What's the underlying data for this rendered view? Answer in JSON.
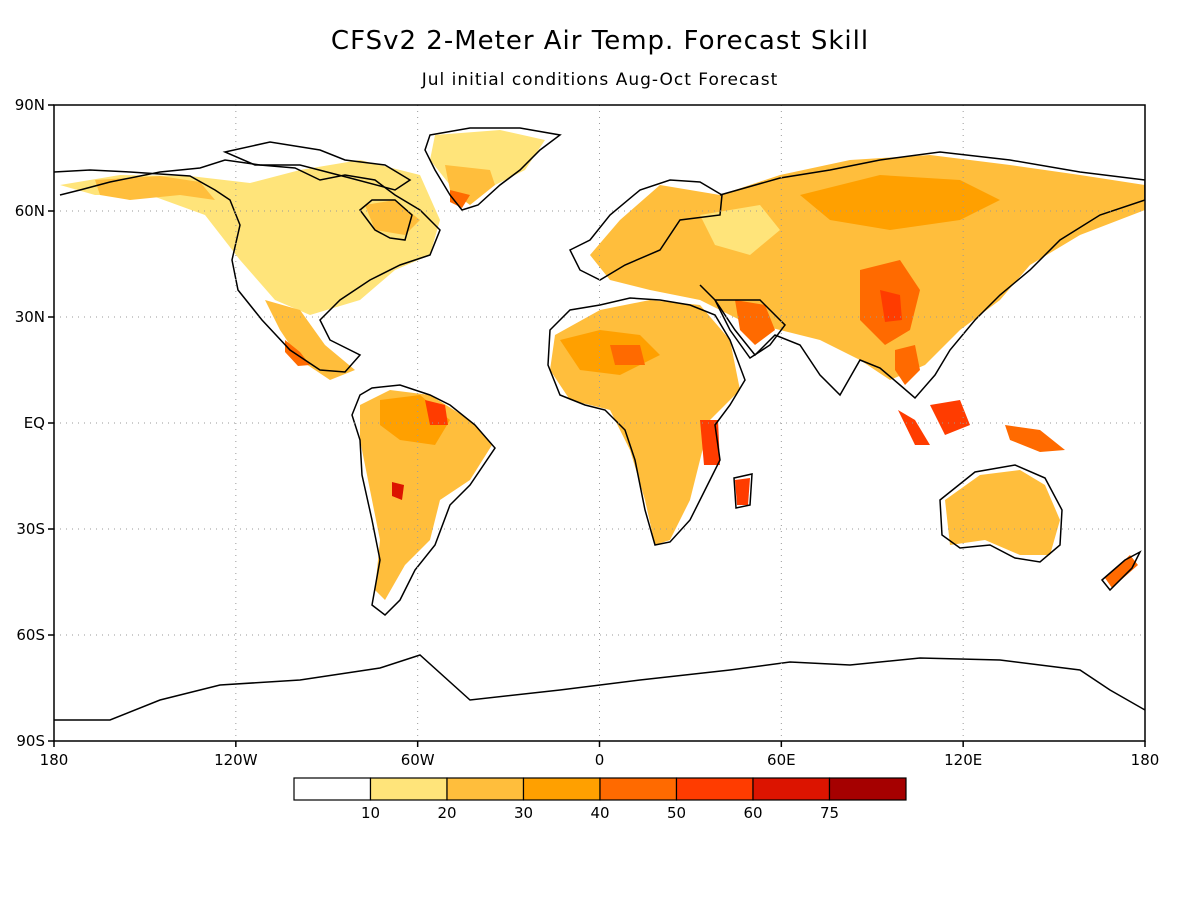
{
  "title": "CFSv2 2-Meter Air Temp. Forecast Skill",
  "subtitle": "Jul initial conditions   Aug-Oct Forecast",
  "lat_labels": [
    "90N",
    "60N",
    "30N",
    "EQ",
    "30S",
    "60S",
    "90S"
  ],
  "lon_labels": [
    "180",
    "120W",
    "60W",
    "0",
    "60E",
    "120E",
    "180"
  ],
  "legend": {
    "colors": [
      "#ffffff",
      "#ffe47a",
      "#ffbe3c",
      "#ffa000",
      "#ff6a00",
      "#ff3c00",
      "#dc1400",
      "#a50000"
    ],
    "labels": [
      "10",
      "20",
      "30",
      "40",
      "50",
      "60",
      "75"
    ]
  },
  "colors": {
    "coast": "#000000",
    "grid": "#9a9a9a"
  }
}
